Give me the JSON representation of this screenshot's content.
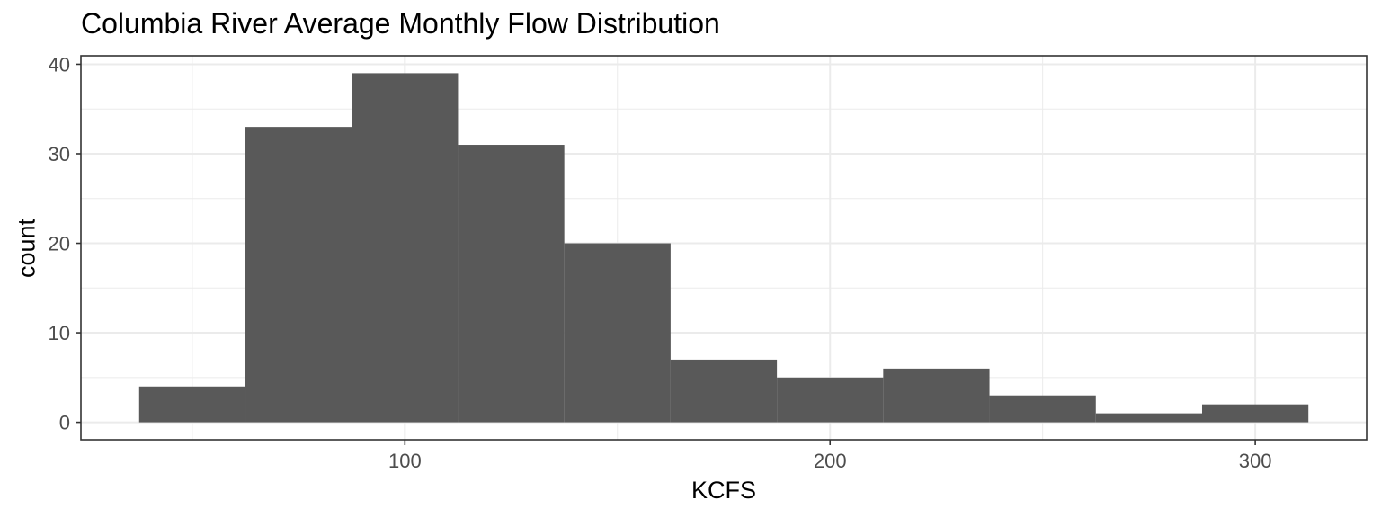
{
  "chart_data": {
    "type": "bar",
    "title": "Columbia River Average Monthly Flow Distribution",
    "xlabel": "KCFS",
    "ylabel": "count",
    "bins": [
      {
        "x0": 37.5,
        "x1": 62.5,
        "count": 4
      },
      {
        "x0": 62.5,
        "x1": 87.5,
        "count": 33
      },
      {
        "x0": 87.5,
        "x1": 112.5,
        "count": 39
      },
      {
        "x0": 112.5,
        "x1": 137.5,
        "count": 31
      },
      {
        "x0": 137.5,
        "x1": 162.5,
        "count": 20
      },
      {
        "x0": 162.5,
        "x1": 187.5,
        "count": 7
      },
      {
        "x0": 187.5,
        "x1": 212.5,
        "count": 5
      },
      {
        "x0": 212.5,
        "x1": 237.5,
        "count": 6
      },
      {
        "x0": 237.5,
        "x1": 262.5,
        "count": 3
      },
      {
        "x0": 262.5,
        "x1": 287.5,
        "count": 1
      },
      {
        "x0": 287.5,
        "x1": 312.5,
        "count": 2
      }
    ],
    "xlim": [
      23.8,
      326.2
    ],
    "ylim": [
      -1.95,
      40.95
    ],
    "xticks": [
      100,
      200,
      300
    ],
    "xminor": [
      50,
      150,
      250
    ],
    "yticks": [
      0,
      10,
      20,
      30,
      40
    ],
    "yminor": [
      5,
      15,
      25,
      35
    ],
    "grid": true,
    "colors": {
      "bar": "#595959",
      "grid": "#ebebeb",
      "axis": "#333333",
      "tick_label": "#4d4d4d"
    }
  }
}
